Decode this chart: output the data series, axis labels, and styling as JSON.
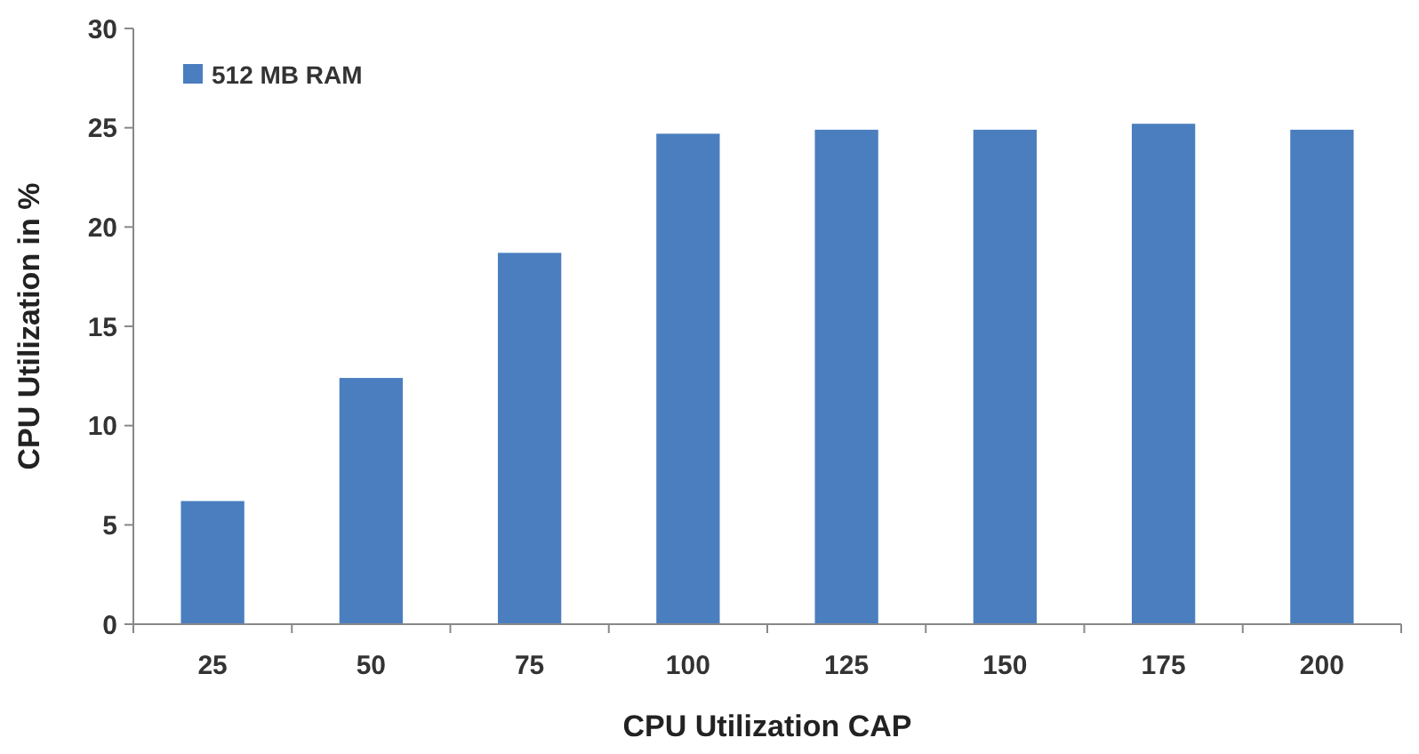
{
  "chart_data": {
    "type": "bar",
    "xlabel": "CPU Utilization CAP",
    "ylabel": "CPU Utilization in %",
    "categories": [
      "25",
      "50",
      "75",
      "100",
      "125",
      "150",
      "175",
      "200"
    ],
    "series": [
      {
        "name": "512 MB RAM",
        "color": "#4a7ebf",
        "values": [
          6.2,
          12.4,
          18.7,
          24.7,
          24.9,
          24.9,
          25.2,
          24.9
        ]
      }
    ],
    "ylim": [
      0,
      30
    ],
    "yticks": [
      0,
      5,
      10,
      15,
      20,
      25,
      30
    ],
    "legend": "top left"
  }
}
